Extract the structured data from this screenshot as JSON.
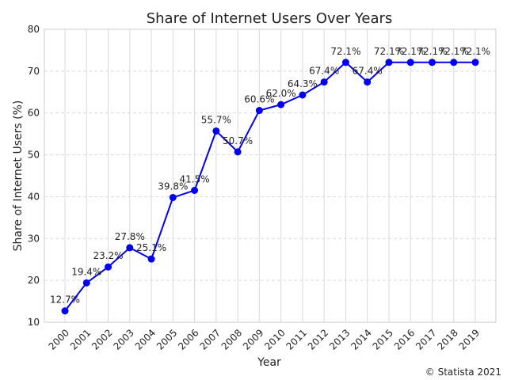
{
  "chart_data": {
    "type": "line",
    "title": "Share of Internet Users Over Years",
    "xlabel": "Year",
    "ylabel": "Share of Internet Users (%)",
    "x": [
      "2000",
      "2001",
      "2002",
      "2003",
      "2004",
      "2005",
      "2006",
      "2007",
      "2008",
      "2009",
      "2010",
      "2011",
      "2012",
      "2013",
      "2014",
      "2015",
      "2016",
      "2017",
      "2018",
      "2019"
    ],
    "series": [
      {
        "values": [
          12.7,
          19.4,
          23.2,
          27.8,
          25.1,
          39.8,
          41.5,
          55.7,
          50.7,
          60.6,
          62.0,
          64.3,
          67.4,
          72.1,
          67.4,
          72.1,
          72.1,
          72.1,
          72.1,
          72.1
        ],
        "labels": [
          "12.7%",
          "19.4%",
          "23.2%",
          "27.8%",
          "25.1%",
          "39.8%",
          "41.5%",
          "55.7%",
          "50.7%",
          "60.6%",
          "62.0%",
          "64.3%",
          "67.4%",
          "72.1%",
          "67.4%",
          "72.1%",
          "72.1%",
          "72.1%",
          "72.1%",
          "72.1%"
        ],
        "color": "#0000ee"
      }
    ],
    "ylim": [
      10,
      80
    ],
    "yticks": [
      "10",
      "20",
      "30",
      "40",
      "50",
      "60",
      "70",
      "80"
    ],
    "grid": true,
    "legend": "none"
  },
  "credit": "© Statista 2021"
}
